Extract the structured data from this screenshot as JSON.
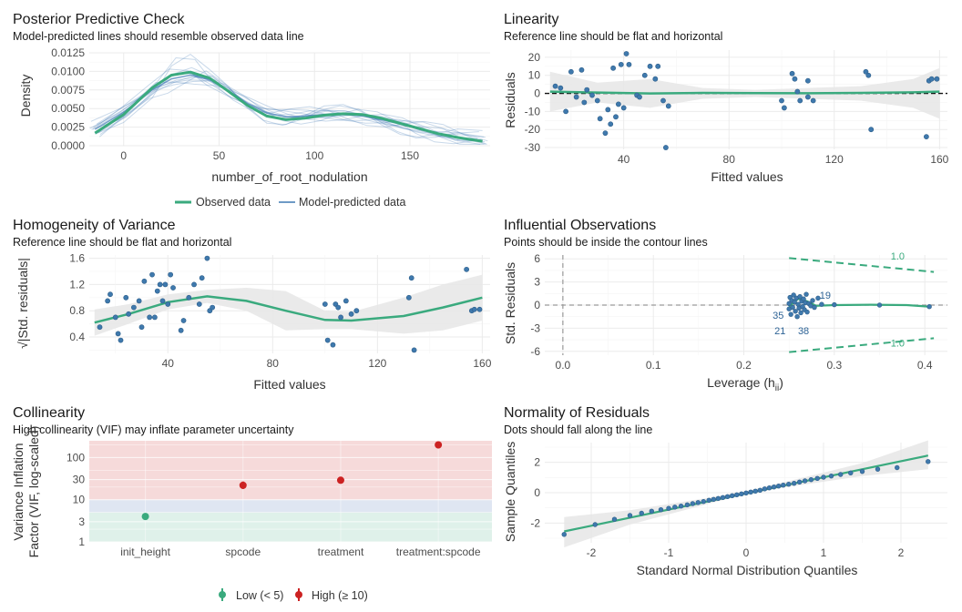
{
  "colors": {
    "green": "#3aaa7e",
    "blue": "#3e78b4",
    "point": "#3f79ad",
    "red": "#cc2222",
    "band": "#e6e6e6",
    "grid": "#ebebeb",
    "gridMinor": "#f4f4f4",
    "zoneHigh": "#f6dada",
    "zoneMod": "#dfe6f2",
    "zoneLow": "#dff1ea"
  },
  "chart_data": [
    {
      "id": "ppc",
      "type": "line",
      "title": "Posterior Predictive Check",
      "subtitle": "Model-predicted lines should resemble observed data line",
      "xlabel": "number_of_root_nodulation",
      "ylabel": "Density",
      "xlim": [
        -18,
        192
      ],
      "ylim": [
        0,
        0.0125
      ],
      "xticks": [
        0,
        50,
        100,
        150
      ],
      "yticks": [
        0.0,
        0.0025,
        0.005,
        0.0075,
        0.01,
        0.0125
      ],
      "ytick_labels": [
        "0.0000",
        "0.0025",
        "0.0050",
        "0.0075",
        "0.0100",
        "0.0125"
      ],
      "observed": {
        "name": "Observed data",
        "x": [
          -15,
          0,
          15,
          25,
          35,
          45,
          55,
          65,
          75,
          85,
          95,
          105,
          115,
          125,
          135,
          145,
          155,
          165,
          175,
          188
        ],
        "y": [
          0.0017,
          0.0042,
          0.0078,
          0.0095,
          0.0099,
          0.0091,
          0.0073,
          0.0054,
          0.004,
          0.0035,
          0.0037,
          0.0041,
          0.0043,
          0.0042,
          0.0037,
          0.003,
          0.0023,
          0.0016,
          0.0011,
          0.0006
        ]
      },
      "predicted_mean": {
        "name": "Model-predicted data",
        "x": [
          -15,
          0,
          15,
          25,
          35,
          45,
          55,
          65,
          75,
          85,
          95,
          105,
          115,
          125,
          135,
          145,
          155,
          165,
          175,
          188
        ],
        "y": [
          0.0022,
          0.0045,
          0.0075,
          0.009,
          0.0095,
          0.0089,
          0.0074,
          0.0057,
          0.0044,
          0.0039,
          0.004,
          0.0042,
          0.0042,
          0.004,
          0.0035,
          0.0029,
          0.0022,
          0.0016,
          0.0011,
          0.0007
        ]
      },
      "legend": [
        "Observed data",
        "Model-predicted data"
      ],
      "legend_position": "bottom"
    },
    {
      "id": "linearity",
      "type": "scatter",
      "title": "Linearity",
      "subtitle": "Reference line should be flat and horizontal",
      "xlabel": "Fitted values",
      "ylabel": "Residuals",
      "xlim": [
        10,
        163
      ],
      "ylim": [
        -31,
        24
      ],
      "xticks": [
        40,
        80,
        120,
        160
      ],
      "yticks": [
        -30,
        -20,
        -10,
        0,
        10,
        20
      ],
      "points": [
        [
          14,
          4
        ],
        [
          16,
          3
        ],
        [
          18,
          -10
        ],
        [
          20,
          12
        ],
        [
          22,
          -2
        ],
        [
          24,
          13
        ],
        [
          25,
          -5
        ],
        [
          26,
          2
        ],
        [
          28,
          -1
        ],
        [
          30,
          -4
        ],
        [
          31,
          -14
        ],
        [
          33,
          -22
        ],
        [
          34,
          -9
        ],
        [
          35,
          -17
        ],
        [
          36,
          14
        ],
        [
          37,
          -13
        ],
        [
          38,
          -6
        ],
        [
          39,
          16
        ],
        [
          40,
          -8
        ],
        [
          41,
          22
        ],
        [
          42,
          16
        ],
        [
          45,
          -1
        ],
        [
          46,
          -2
        ],
        [
          48,
          10
        ],
        [
          50,
          15
        ],
        [
          52,
          8
        ],
        [
          53,
          15
        ],
        [
          55,
          -4
        ],
        [
          56,
          -30
        ],
        [
          57,
          -7
        ],
        [
          100,
          -4
        ],
        [
          101,
          -8
        ],
        [
          104,
          11
        ],
        [
          105,
          8
        ],
        [
          106,
          1
        ],
        [
          107,
          -4
        ],
        [
          110,
          -2
        ],
        [
          110,
          7
        ],
        [
          112,
          -4
        ],
        [
          132,
          12
        ],
        [
          133,
          10
        ],
        [
          134,
          -20
        ],
        [
          155,
          -24
        ],
        [
          156,
          7
        ],
        [
          157,
          8
        ],
        [
          159,
          8
        ]
      ],
      "smooth": {
        "x": [
          12,
          30,
          50,
          70,
          90,
          110,
          130,
          150,
          160
        ],
        "y": [
          1,
          0.5,
          0,
          0.3,
          0.2,
          0.1,
          0.3,
          0.6,
          1
        ]
      },
      "band_upper": [
        12,
        6,
        8,
        3,
        2,
        3,
        4,
        8,
        14
      ],
      "band_lower": [
        -10,
        -5,
        -8,
        -3,
        -2,
        -3,
        -4,
        -8,
        -14
      ],
      "reference_y": 0
    },
    {
      "id": "homogeneity",
      "type": "scatter",
      "title": "Homogeneity of Variance",
      "subtitle": "Reference line should be flat and horizontal",
      "xlabel": "Fitted values",
      "ylabel": "√|Std. residuals|",
      "xlim": [
        10,
        163
      ],
      "ylim": [
        0.15,
        1.65
      ],
      "xticks": [
        40,
        80,
        120,
        160
      ],
      "yticks": [
        0.4,
        0.8,
        1.2,
        1.6
      ],
      "points": [
        [
          14,
          0.55
        ],
        [
          17,
          0.95
        ],
        [
          18,
          1.05
        ],
        [
          20,
          0.7
        ],
        [
          21,
          0.45
        ],
        [
          22,
          0.35
        ],
        [
          24,
          1.0
        ],
        [
          25,
          0.75
        ],
        [
          27,
          0.85
        ],
        [
          29,
          0.95
        ],
        [
          30,
          0.55
        ],
        [
          31,
          1.25
        ],
        [
          33,
          0.7
        ],
        [
          34,
          1.35
        ],
        [
          35,
          0.7
        ],
        [
          36,
          1.1
        ],
        [
          37,
          1.2
        ],
        [
          38,
          0.95
        ],
        [
          39,
          1.2
        ],
        [
          40,
          0.9
        ],
        [
          41,
          1.35
        ],
        [
          42,
          1.15
        ],
        [
          45,
          0.5
        ],
        [
          46,
          0.65
        ],
        [
          48,
          1.0
        ],
        [
          50,
          1.2
        ],
        [
          52,
          0.9
        ],
        [
          53,
          1.3
        ],
        [
          55,
          1.6
        ],
        [
          56,
          0.8
        ],
        [
          57,
          0.85
        ],
        [
          100,
          0.9
        ],
        [
          101,
          0.35
        ],
        [
          103,
          0.28
        ],
        [
          104,
          0.9
        ],
        [
          105,
          0.85
        ],
        [
          106,
          0.7
        ],
        [
          108,
          0.95
        ],
        [
          110,
          0.75
        ],
        [
          112,
          0.8
        ],
        [
          132,
          1.0
        ],
        [
          133,
          1.3
        ],
        [
          134,
          0.2
        ],
        [
          154,
          1.43
        ],
        [
          156,
          0.8
        ],
        [
          157,
          0.82
        ],
        [
          159,
          0.82
        ]
      ],
      "smooth": {
        "x": [
          12,
          25,
          40,
          55,
          70,
          85,
          100,
          110,
          130,
          145,
          160
        ],
        "y": [
          0.62,
          0.75,
          0.93,
          1.02,
          0.95,
          0.8,
          0.66,
          0.65,
          0.72,
          0.85,
          1.0
        ]
      },
      "band_upper": [
        0.82,
        0.9,
        1.05,
        1.12,
        1.15,
        1.1,
        0.8,
        0.78,
        1.0,
        1.2,
        1.35
      ],
      "band_lower": [
        0.42,
        0.6,
        0.82,
        0.92,
        0.8,
        0.5,
        0.52,
        0.52,
        0.45,
        0.5,
        0.65
      ]
    },
    {
      "id": "influential",
      "type": "scatter",
      "title": "Influential Observations",
      "subtitle": "Points should be inside the contour lines",
      "xlabel": "Leverage (hii)",
      "ylabel": "Std. Residuals",
      "xlim": [
        -0.02,
        0.425
      ],
      "ylim": [
        -6.5,
        6.5
      ],
      "xticks": [
        0.0,
        0.1,
        0.2,
        0.3,
        0.4
      ],
      "xtick_labels": [
        "0.0",
        "0.1",
        "0.2",
        "0.3",
        "0.4"
      ],
      "yticks": [
        -6,
        -3,
        0,
        3,
        6
      ],
      "points": [
        [
          0.25,
          0.2
        ],
        [
          0.25,
          -0.5
        ],
        [
          0.251,
          1.0
        ],
        [
          0.252,
          -1.2
        ],
        [
          0.253,
          0.6
        ],
        [
          0.254,
          -0.3
        ],
        [
          0.255,
          1.3
        ],
        [
          0.256,
          0.4
        ],
        [
          0.257,
          -0.8
        ],
        [
          0.258,
          0.9
        ],
        [
          0.259,
          -1.5
        ],
        [
          0.26,
          0.1
        ],
        [
          0.261,
          -0.4
        ],
        [
          0.262,
          1.1
        ],
        [
          0.263,
          -1.0
        ],
        [
          0.264,
          0.5
        ],
        [
          0.265,
          -0.2
        ],
        [
          0.266,
          0.8
        ],
        [
          0.267,
          -0.6
        ],
        [
          0.268,
          0.3
        ],
        [
          0.269,
          1.4
        ],
        [
          0.27,
          -0.9
        ],
        [
          0.272,
          0.2
        ],
        [
          0.274,
          -0.1
        ],
        [
          0.276,
          0.6
        ],
        [
          0.278,
          -0.3
        ],
        [
          0.282,
          0.9
        ],
        [
          0.286,
          0.1
        ],
        [
          0.3,
          0.05
        ],
        [
          0.35,
          0.0
        ],
        [
          0.405,
          -0.2
        ]
      ],
      "labels": [
        {
          "text": "19",
          "x": 0.29,
          "y": 1.3
        },
        {
          "text": "35",
          "x": 0.238,
          "y": -1.3
        },
        {
          "text": "21",
          "x": 0.24,
          "y": -3.3
        },
        {
          "text": "38",
          "x": 0.266,
          "y": -3.3
        }
      ],
      "smooth": {
        "x": [
          0.25,
          0.26,
          0.27,
          0.28,
          0.3,
          0.34,
          0.38,
          0.405
        ],
        "y": [
          -0.2,
          0.8,
          0.5,
          -0.1,
          0.0,
          0.05,
          0.0,
          -0.2
        ]
      },
      "contour_upper": {
        "x": [
          0.25,
          0.41
        ],
        "y": [
          6.1,
          4.3
        ]
      },
      "contour_lower": {
        "x": [
          0.25,
          0.41
        ],
        "y": [
          -6.1,
          -4.3
        ]
      },
      "contour_label": "1.0"
    },
    {
      "id": "collinearity",
      "type": "scatter",
      "title": "Collinearity",
      "subtitle": "High collinearity (VIF) may inflate parameter uncertainty",
      "xlabel": "",
      "ylabel": "Variance Inflation Factor (VIF, log-scaled)",
      "ylabel_lines": [
        "Variance Inflation",
        "Factor (VIF, log-scaled)"
      ],
      "scale": "log10",
      "ylim": [
        1,
        250
      ],
      "yticks": [
        1,
        3,
        10,
        30,
        100
      ],
      "categories": [
        "init_height",
        "spcode",
        "treatment",
        "treatment:spcode"
      ],
      "values": [
        4.0,
        22,
        29,
        200
      ],
      "ci_low": [
        3.4,
        18,
        24,
        165
      ],
      "ci_high": [
        4.8,
        27,
        35,
        240
      ],
      "groups": [
        "Low",
        "High",
        "High",
        "High"
      ],
      "zones": [
        {
          "from": 1,
          "to": 5,
          "name": "Low"
        },
        {
          "from": 5,
          "to": 10,
          "name": "Moderate"
        },
        {
          "from": 10,
          "to": 250,
          "name": "High"
        }
      ],
      "legend": [
        "Low (< 5)",
        "High (≥ 10)"
      ],
      "legend_position": "bottom"
    },
    {
      "id": "normality",
      "type": "scatter",
      "title": "Normality of Residuals",
      "subtitle": "Dots should fall along the line",
      "xlabel": "Standard Normal Distribution Quantiles",
      "ylabel": "Sample Quantiles",
      "xlim": [
        -2.6,
        2.6
      ],
      "ylim": [
        -3.3,
        3.3
      ],
      "xticks": [
        -2,
        -1,
        0,
        1,
        2
      ],
      "yticks": [
        -2,
        0,
        2
      ],
      "line": {
        "x": [
          -2.35,
          2.35
        ],
        "y": [
          -2.55,
          2.45
        ]
      },
      "band_x": [
        -2.35,
        -1.5,
        -0.5,
        0,
        0.5,
        1.5,
        2.35
      ],
      "band_upper": [
        -1.6,
        -1.15,
        -0.35,
        0.1,
        0.7,
        1.95,
        3.45
      ],
      "band_lower": [
        -3.6,
        -2.1,
        -0.75,
        -0.1,
        0.35,
        1.1,
        1.55
      ],
      "points": [
        [
          -2.35,
          -2.75
        ],
        [
          -1.95,
          -2.1
        ],
        [
          -1.7,
          -1.75
        ],
        [
          -1.5,
          -1.5
        ],
        [
          -1.35,
          -1.35
        ],
        [
          -1.22,
          -1.22
        ],
        [
          -1.1,
          -1.12
        ],
        [
          -1.0,
          -1.03
        ],
        [
          -0.92,
          -0.95
        ],
        [
          -0.84,
          -0.88
        ],
        [
          -0.76,
          -0.8
        ],
        [
          -0.69,
          -0.72
        ],
        [
          -0.62,
          -0.65
        ],
        [
          -0.55,
          -0.58
        ],
        [
          -0.48,
          -0.5
        ],
        [
          -0.42,
          -0.44
        ],
        [
          -0.36,
          -0.38
        ],
        [
          -0.3,
          -0.32
        ],
        [
          -0.24,
          -0.26
        ],
        [
          -0.18,
          -0.2
        ],
        [
          -0.12,
          -0.14
        ],
        [
          -0.06,
          -0.08
        ],
        [
          0.0,
          -0.02
        ],
        [
          0.06,
          0.04
        ],
        [
          0.12,
          0.1
        ],
        [
          0.18,
          0.16
        ],
        [
          0.24,
          0.25
        ],
        [
          0.3,
          0.32
        ],
        [
          0.36,
          0.38
        ],
        [
          0.42,
          0.44
        ],
        [
          0.48,
          0.5
        ],
        [
          0.55,
          0.56
        ],
        [
          0.62,
          0.62
        ],
        [
          0.69,
          0.7
        ],
        [
          0.76,
          0.78
        ],
        [
          0.84,
          0.86
        ],
        [
          0.92,
          0.94
        ],
        [
          1.0,
          1.02
        ],
        [
          1.1,
          1.1
        ],
        [
          1.22,
          1.2
        ],
        [
          1.35,
          1.3
        ],
        [
          1.5,
          1.4
        ],
        [
          1.7,
          1.55
        ],
        [
          1.95,
          1.65
        ],
        [
          2.35,
          2.05
        ]
      ]
    }
  ]
}
